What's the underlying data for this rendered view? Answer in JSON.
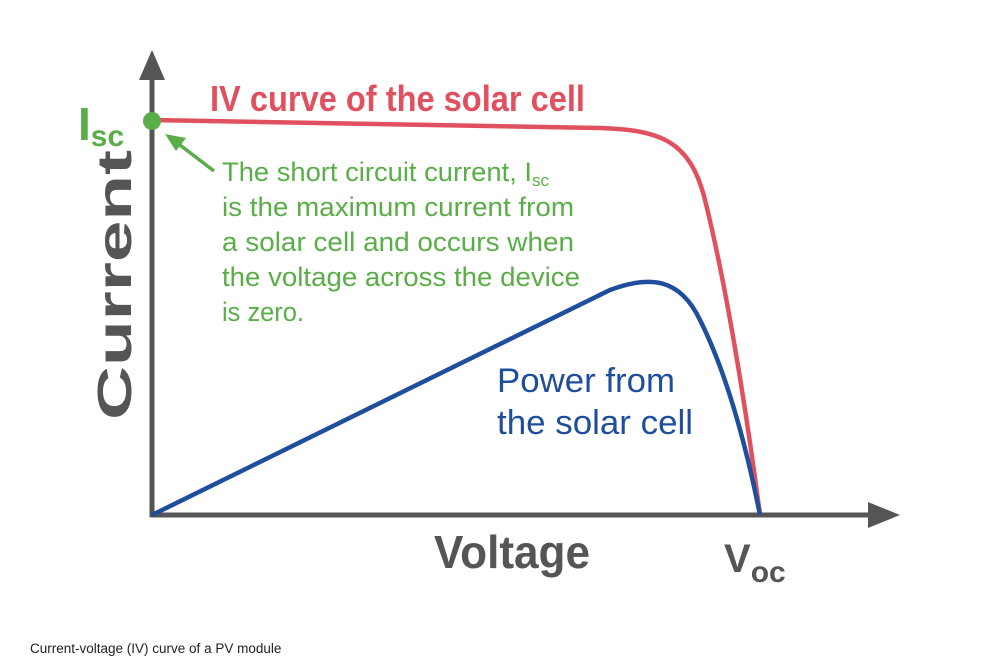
{
  "title": "IV curve of the solar cell",
  "y_axis": {
    "label": "Current",
    "marker": {
      "main": "I",
      "sub": "sc"
    }
  },
  "x_axis": {
    "label": "Voltage",
    "marker": {
      "main": "V",
      "sub": "oc"
    }
  },
  "annotation": {
    "lines": [
      {
        "text": "The short circuit current, I",
        "sub": "sc"
      },
      {
        "text": "is the maximum current from"
      },
      {
        "text": "a solar cell and occurs when"
      },
      {
        "text": "the voltage across the device"
      },
      {
        "text": "is zero."
      }
    ]
  },
  "power_label": {
    "lines": [
      "Power from",
      "the solar cell"
    ]
  },
  "caption": "Current-voltage (IV) curve of a PV module"
}
